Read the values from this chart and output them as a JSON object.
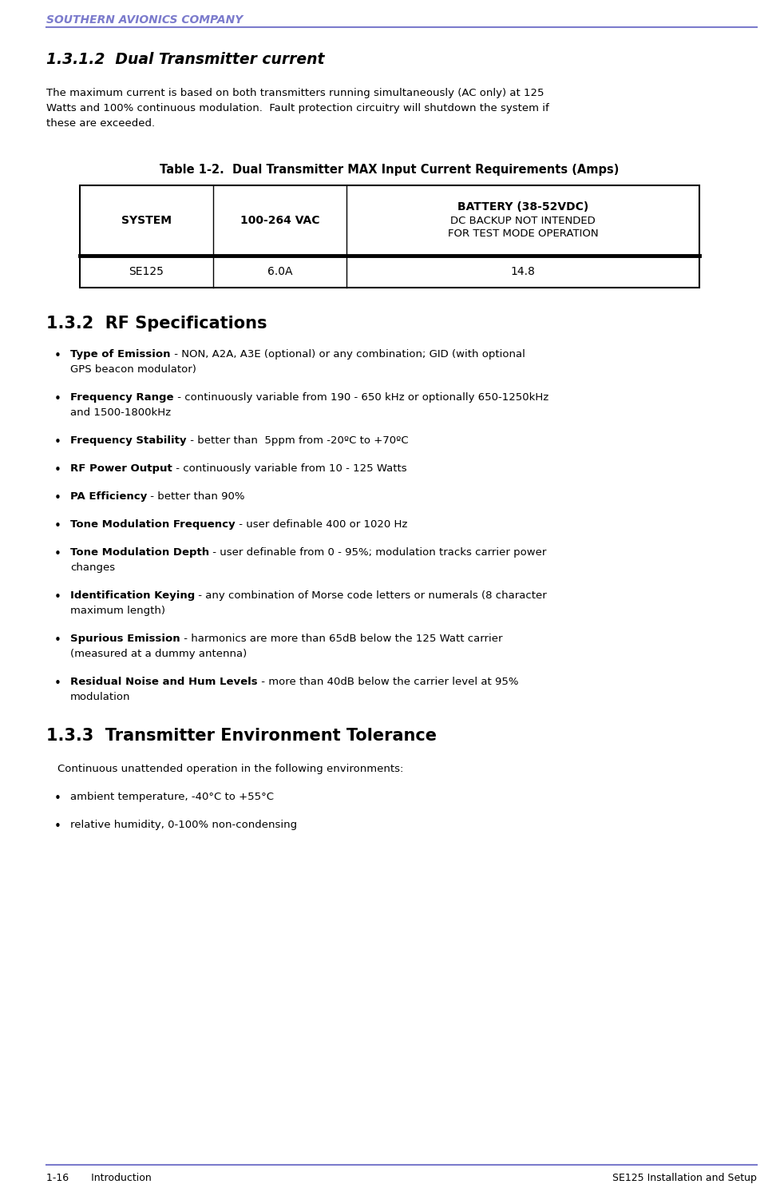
{
  "header_text": "SOUTHERN AVIONICS COMPANY",
  "header_color": "#7b7bcc",
  "footer_left": "1-16       Introduction",
  "footer_right": "SE125 Installation and Setup",
  "section_title": "1.3.1.2  Dual Transmitter current",
  "para_lines": [
    "The maximum current is based on both transmitters running simultaneously (AC only) at 125",
    "Watts and 100% continuous modulation.  Fault protection circuitry will shutdown the system if",
    "these are exceeded."
  ],
  "table_title": "Table 1-2.  Dual Transmitter MAX Input Current Requirements (Amps)",
  "col_header_0": "SYSTEM",
  "col_header_1": "100-264 VAC",
  "col_header_2_line1": "BATTERY (38-52VDC)",
  "col_header_2_line2": "DC BACKUP NOT INTENDED",
  "col_header_2_line3": "FOR TEST MODE OPERATION",
  "data_col0": "SE125",
  "data_col1": "6.0A",
  "data_col2": "14.8",
  "section2_title": "1.3.2  RF Specifications",
  "rf_bullets": [
    {
      "bold": "Type of Emission",
      "rest": " - NON, A2A, A3E (optional) or any combination; GID (with optional",
      "cont": "GPS beacon modulator)"
    },
    {
      "bold": "Frequency Range",
      "rest": " - continuously variable from 190 - 650 kHz or optionally 650-1250kHz",
      "cont": "and 1500-1800kHz"
    },
    {
      "bold": "Frequency Stability",
      "rest": " - better than  5ppm from -20ºC to +70ºC",
      "cont": ""
    },
    {
      "bold": "RF Power Output",
      "rest": " - continuously variable from 10 - 125 Watts",
      "cont": ""
    },
    {
      "bold": "PA Efficiency",
      "rest": " - better than 90% ",
      "cont": ""
    },
    {
      "bold": "Tone Modulation Frequency",
      "rest": " - user definable 400 or 1020 Hz",
      "cont": ""
    },
    {
      "bold": "Tone Modulation Depth",
      "rest": " - user definable from 0 - 95%; modulation tracks carrier power",
      "cont": "changes"
    },
    {
      "bold": "Identification Keying",
      "rest": " - any combination of Morse code letters or numerals (8 character",
      "cont": "maximum length)"
    },
    {
      "bold": "Spurious Emission",
      "rest": " - harmonics are more than 65dB below the 125 Watt carrier",
      "cont": "(measured at a dummy antenna)"
    },
    {
      "bold": "Residual Noise and Hum Levels",
      "rest": " - more than 40dB below the carrier level at 95%",
      "cont": "modulation"
    }
  ],
  "section3_title": "1.3.3  Transmitter Environment Tolerance",
  "section3_intro": "Continuous unattended operation in the following environments:",
  "env_bullets": [
    "ambient temperature, -40°C to +55°C",
    "relative humidity, 0-100% non-condensing"
  ]
}
